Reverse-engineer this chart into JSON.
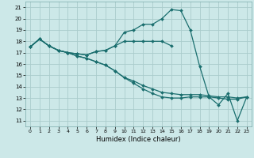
{
  "xlabel": "Humidex (Indice chaleur)",
  "background_color": "#cce8e8",
  "grid_color": "#aacccc",
  "line_color": "#1a6e6e",
  "xlim": [
    -0.5,
    23.5
  ],
  "ylim": [
    10.5,
    21.5
  ],
  "xticks": [
    0,
    1,
    2,
    3,
    4,
    5,
    6,
    7,
    8,
    9,
    10,
    11,
    12,
    13,
    14,
    15,
    16,
    17,
    18,
    19,
    20,
    21,
    22,
    23
  ],
  "yticks": [
    11,
    12,
    13,
    14,
    15,
    16,
    17,
    18,
    19,
    20,
    21
  ],
  "lines": [
    {
      "x": [
        0,
        1,
        2,
        3,
        4,
        5,
        6,
        7,
        8,
        9,
        10,
        11,
        12,
        13,
        14,
        15,
        16,
        17,
        18,
        19,
        20,
        21,
        22,
        23
      ],
      "y": [
        17.5,
        18.2,
        17.6,
        17.2,
        17.0,
        16.9,
        16.8,
        17.1,
        17.2,
        17.6,
        18.0,
        18.0,
        18.0,
        18.0,
        18.0,
        17.6,
        null,
        null,
        null,
        null,
        null,
        null,
        null,
        null
      ]
    },
    {
      "x": [
        0,
        1,
        2,
        3,
        4,
        5,
        6,
        7,
        8,
        9,
        10,
        11,
        12,
        13,
        14,
        15,
        16,
        17,
        18,
        19,
        20,
        21,
        22,
        23
      ],
      "y": [
        17.5,
        18.2,
        17.6,
        17.2,
        17.0,
        16.9,
        16.8,
        17.1,
        17.2,
        17.6,
        18.8,
        19.0,
        19.5,
        19.5,
        20.0,
        20.8,
        20.7,
        19.0,
        15.8,
        13.1,
        12.4,
        13.4,
        11.0,
        13.1
      ]
    },
    {
      "x": [
        0,
        1,
        2,
        3,
        4,
        5,
        6,
        7,
        8,
        9,
        10,
        11,
        12,
        13,
        14,
        15,
        16,
        17,
        18,
        19,
        20,
        21,
        22,
        23
      ],
      "y": [
        17.5,
        18.2,
        17.6,
        17.2,
        17.0,
        16.7,
        16.5,
        16.2,
        15.9,
        15.4,
        14.8,
        14.3,
        13.8,
        13.4,
        13.1,
        13.0,
        13.0,
        13.1,
        13.1,
        13.1,
        13.0,
        12.9,
        12.9,
        13.1
      ]
    },
    {
      "x": [
        0,
        1,
        2,
        3,
        4,
        5,
        6,
        7,
        8,
        9,
        10,
        11,
        12,
        13,
        14,
        15,
        16,
        17,
        18,
        19,
        20,
        21,
        22,
        23
      ],
      "y": [
        17.5,
        18.2,
        17.6,
        17.2,
        17.0,
        16.7,
        16.5,
        16.2,
        15.9,
        15.4,
        14.8,
        14.5,
        14.1,
        13.8,
        13.5,
        13.4,
        13.3,
        13.3,
        13.3,
        13.2,
        13.1,
        13.1,
        13.0,
        13.1
      ]
    }
  ]
}
